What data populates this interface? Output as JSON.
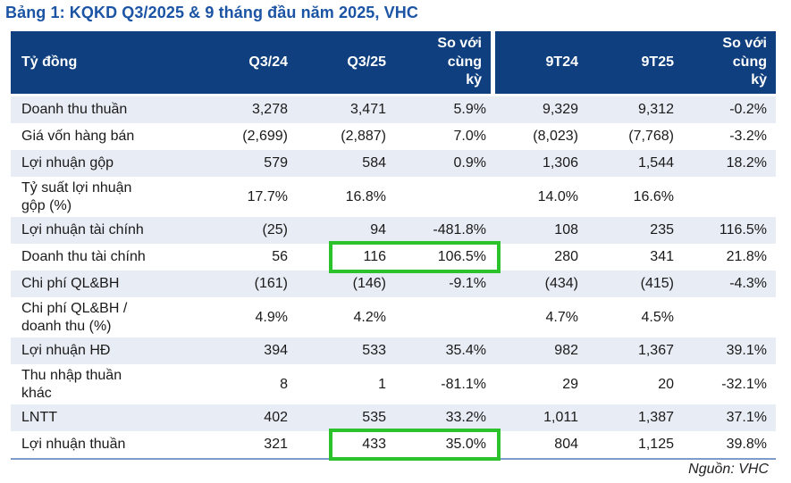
{
  "page": {
    "title": "Bảng 1: KQKD Q3/2025 & 9 tháng đầu năm 2025, VHC",
    "source_note": "Nguồn: VHC"
  },
  "colors": {
    "header_bg": "#0f3f7e",
    "title_text": "#1b54a4",
    "row_stripe": "#e8ecf4",
    "highlight_green": "#2bc22b",
    "bottom_rule_blue": "#7e9cc8"
  },
  "table": {
    "columns": [
      "Tỷ đồng",
      "Q3/24",
      "Q3/25",
      "So với\ncùng\nkỳ",
      "9T24",
      "9T25",
      "So với\ncùng\nkỳ"
    ],
    "rows": [
      {
        "label": "Doanh thu thuần",
        "values": [
          "3,278",
          "3,471",
          "5.9%",
          "9,329",
          "9,312",
          "-0.2%"
        ],
        "highlight": false
      },
      {
        "label": "Giá vốn hàng bán",
        "values": [
          "(2,699)",
          "(2,887)",
          "7.0%",
          "(8,023)",
          "(7,768)",
          "-3.2%"
        ],
        "highlight": false
      },
      {
        "label": "Lợi nhuận gộp",
        "values": [
          "579",
          "584",
          "0.9%",
          "1,306",
          "1,544",
          "18.2%"
        ],
        "highlight": false
      },
      {
        "label": "Tỷ suất lợi nhuận\ngộp (%)",
        "values": [
          "17.7%",
          "16.8%",
          "",
          "14.0%",
          "16.6%",
          ""
        ],
        "highlight": false
      },
      {
        "label": "Lợi nhuận tài chính",
        "values": [
          "(25)",
          "94",
          "-481.8%",
          "108",
          "235",
          "116.5%"
        ],
        "highlight": false
      },
      {
        "label": "Doanh thu tài chính",
        "values": [
          "56",
          "116",
          "106.5%",
          "280",
          "341",
          "21.8%"
        ],
        "highlight": true,
        "highlighted_columns": [
          "Q3/25",
          "So với cùng kỳ"
        ]
      },
      {
        "label": "Chi phí QL&BH",
        "values": [
          "(161)",
          "(146)",
          "-9.1%",
          "(434)",
          "(415)",
          "-4.3%"
        ],
        "highlight": false
      },
      {
        "label": "Chi phí QL&BH /\ndoanh thu (%)",
        "values": [
          "4.9%",
          "4.2%",
          "",
          "4.7%",
          "4.5%",
          ""
        ],
        "highlight": false
      },
      {
        "label": "Lợi nhuận HĐ",
        "values": [
          "394",
          "533",
          "35.4%",
          "982",
          "1,367",
          "39.1%"
        ],
        "highlight": false
      },
      {
        "label": "Thu nhập thuần\nkhác",
        "values": [
          "8",
          "1",
          "-81.1%",
          "29",
          "20",
          "-32.1%"
        ],
        "highlight": false
      },
      {
        "label": "LNTT",
        "values": [
          "402",
          "535",
          "33.2%",
          "1,011",
          "1,387",
          "37.1%"
        ],
        "highlight": false
      },
      {
        "label": "Lợi nhuận thuần",
        "values": [
          "321",
          "433",
          "35.0%",
          "804",
          "1,125",
          "39.8%"
        ],
        "highlight": true,
        "highlighted_columns": [
          "Q3/25",
          "So với cùng kỳ"
        ]
      }
    ]
  }
}
